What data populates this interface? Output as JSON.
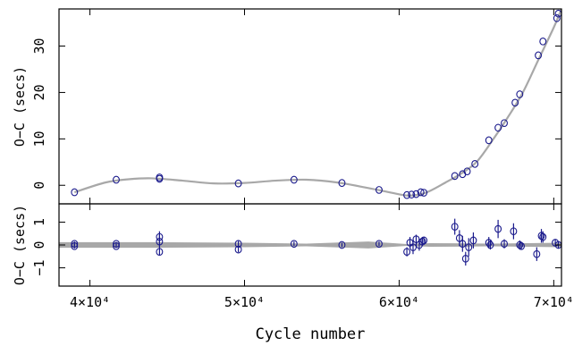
{
  "chart_data": [
    {
      "type": "scatter",
      "panel": "top",
      "title": "",
      "xlabel": "",
      "ylabel": "O−C (secs)",
      "xlim": [
        38000,
        70500
      ],
      "ylim": [
        -4,
        38
      ],
      "yticks": [
        0,
        10,
        20,
        30
      ],
      "ytick_labels": [
        "0",
        "10",
        "20",
        "30"
      ],
      "grid": false,
      "points": [
        {
          "x": 39000,
          "y": -1.5
        },
        {
          "x": 41700,
          "y": 1.2
        },
        {
          "x": 44500,
          "y": 1.7
        },
        {
          "x": 44500,
          "y": 1.4
        },
        {
          "x": 49600,
          "y": 0.4
        },
        {
          "x": 53200,
          "y": 1.2
        },
        {
          "x": 56300,
          "y": 0.5
        },
        {
          "x": 58700,
          "y": -1.0
        },
        {
          "x": 60500,
          "y": -2.1
        },
        {
          "x": 60800,
          "y": -2.0
        },
        {
          "x": 61100,
          "y": -1.9
        },
        {
          "x": 61400,
          "y": -1.5
        },
        {
          "x": 61600,
          "y": -1.6
        },
        {
          "x": 63600,
          "y": 2.0
        },
        {
          "x": 64100,
          "y": 2.4
        },
        {
          "x": 64400,
          "y": 3.0
        },
        {
          "x": 64900,
          "y": 4.6
        },
        {
          "x": 65800,
          "y": 9.7
        },
        {
          "x": 66400,
          "y": 12.4
        },
        {
          "x": 66800,
          "y": 13.4
        },
        {
          "x": 67500,
          "y": 17.8
        },
        {
          "x": 67800,
          "y": 19.6
        },
        {
          "x": 69000,
          "y": 28.0
        },
        {
          "x": 69300,
          "y": 31.0
        },
        {
          "x": 70200,
          "y": 36.0
        },
        {
          "x": 70300,
          "y": 37.0
        }
      ],
      "fit_curve": [
        {
          "x": 39000,
          "y": -1.5
        },
        {
          "x": 41000,
          "y": 0.6
        },
        {
          "x": 42500,
          "y": 1.3
        },
        {
          "x": 44000,
          "y": 1.5
        },
        {
          "x": 46000,
          "y": 1.0
        },
        {
          "x": 48000,
          "y": 0.4
        },
        {
          "x": 50000,
          "y": 0.5
        },
        {
          "x": 52000,
          "y": 1.0
        },
        {
          "x": 54000,
          "y": 1.2
        },
        {
          "x": 56000,
          "y": 0.6
        },
        {
          "x": 58000,
          "y": -0.6
        },
        {
          "x": 59500,
          "y": -1.6
        },
        {
          "x": 60500,
          "y": -2.2
        },
        {
          "x": 61300,
          "y": -2.0
        },
        {
          "x": 62000,
          "y": -1.2
        },
        {
          "x": 63000,
          "y": 0.6
        },
        {
          "x": 64000,
          "y": 2.5
        },
        {
          "x": 65000,
          "y": 5.0
        },
        {
          "x": 66000,
          "y": 9.5
        },
        {
          "x": 67000,
          "y": 14.5
        },
        {
          "x": 68000,
          "y": 20.0
        },
        {
          "x": 69000,
          "y": 27.0
        },
        {
          "x": 70000,
          "y": 34.0
        },
        {
          "x": 70500,
          "y": 38.0
        }
      ]
    },
    {
      "type": "scatter",
      "panel": "bottom",
      "title": "",
      "xlabel": "Cycle number",
      "ylabel": "O−C (secs)",
      "xlim": [
        38000,
        70500
      ],
      "ylim": [
        -1.8,
        1.8
      ],
      "yticks": [
        -1,
        0,
        1
      ],
      "ytick_labels": [
        "−1",
        "0",
        "1"
      ],
      "xticks": [
        40000,
        50000,
        60000,
        70000
      ],
      "xtick_labels": [
        "4×10⁴",
        "5×10⁴",
        "6×10⁴",
        "7×10⁴"
      ],
      "grid": false,
      "points": [
        {
          "x": 39000,
          "y": 0.05,
          "err": 0.1
        },
        {
          "x": 39000,
          "y": -0.05,
          "err": 0.1
        },
        {
          "x": 41700,
          "y": 0.05,
          "err": 0.08
        },
        {
          "x": 41700,
          "y": -0.05,
          "err": 0.08
        },
        {
          "x": 44500,
          "y": 0.35,
          "err": 0.25
        },
        {
          "x": 44500,
          "y": 0.15,
          "err": 0.3
        },
        {
          "x": 44500,
          "y": -0.3,
          "err": 0.15
        },
        {
          "x": 49600,
          "y": 0.05,
          "err": 0.12
        },
        {
          "x": 49600,
          "y": -0.2,
          "err": 0.12
        },
        {
          "x": 53200,
          "y": 0.05,
          "err": 0.1
        },
        {
          "x": 56300,
          "y": 0.0,
          "err": 0.1
        },
        {
          "x": 58700,
          "y": 0.05,
          "err": 0.1
        },
        {
          "x": 60500,
          "y": -0.3,
          "err": 0.2
        },
        {
          "x": 60700,
          "y": 0.1,
          "err": 0.25
        },
        {
          "x": 60900,
          "y": -0.1,
          "err": 0.3
        },
        {
          "x": 61100,
          "y": 0.25,
          "err": 0.2
        },
        {
          "x": 61300,
          "y": 0.0,
          "err": 0.25
        },
        {
          "x": 61500,
          "y": 0.15,
          "err": 0.2
        },
        {
          "x": 61600,
          "y": 0.2,
          "err": 0.15
        },
        {
          "x": 63600,
          "y": 0.8,
          "err": 0.35
        },
        {
          "x": 63900,
          "y": 0.3,
          "err": 0.35
        },
        {
          "x": 64100,
          "y": 0.05,
          "err": 0.35
        },
        {
          "x": 64300,
          "y": -0.6,
          "err": 0.3
        },
        {
          "x": 64500,
          "y": -0.1,
          "err": 0.4
        },
        {
          "x": 64800,
          "y": 0.2,
          "err": 0.35
        },
        {
          "x": 65800,
          "y": 0.1,
          "err": 0.25
        },
        {
          "x": 65900,
          "y": 0.0,
          "err": 0.2
        },
        {
          "x": 66400,
          "y": 0.7,
          "err": 0.4
        },
        {
          "x": 66800,
          "y": 0.05,
          "err": 0.2
        },
        {
          "x": 67400,
          "y": 0.6,
          "err": 0.35
        },
        {
          "x": 67800,
          "y": 0.0,
          "err": 0.2
        },
        {
          "x": 67900,
          "y": -0.05,
          "err": 0.15
        },
        {
          "x": 68900,
          "y": -0.4,
          "err": 0.3
        },
        {
          "x": 69200,
          "y": 0.4,
          "err": 0.3
        },
        {
          "x": 69300,
          "y": 0.35,
          "err": 0.25
        },
        {
          "x": 70100,
          "y": 0.1,
          "err": 0.15
        },
        {
          "x": 70300,
          "y": 0.0,
          "err": 0.15
        }
      ],
      "band_halfwidth": [
        {
          "x": 38000,
          "y": 0.12
        },
        {
          "x": 44000,
          "y": 0.12
        },
        {
          "x": 50000,
          "y": 0.1
        },
        {
          "x": 54000,
          "y": 0.06
        },
        {
          "x": 58000,
          "y": 0.15
        },
        {
          "x": 60500,
          "y": 0.04
        },
        {
          "x": 62000,
          "y": 0.08
        },
        {
          "x": 66000,
          "y": 0.06
        },
        {
          "x": 70500,
          "y": 0.1
        }
      ]
    }
  ],
  "colors": {
    "points": "#1a1a8c",
    "fit": "#a8a8a8",
    "axes": "#000000"
  }
}
